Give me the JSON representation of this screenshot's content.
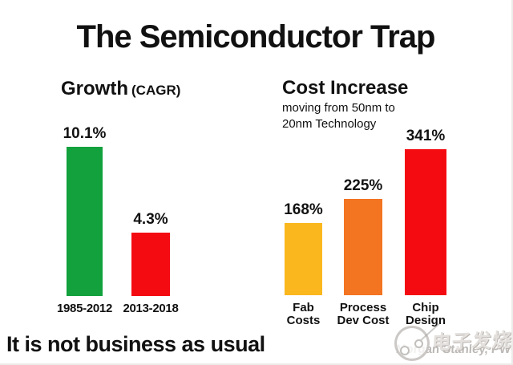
{
  "title": "The Semiconductor Trap",
  "chart_data": [
    {
      "type": "bar",
      "title": "Growth",
      "title_note": "(CAGR)",
      "categories": [
        "1985-2012",
        "2013-2018"
      ],
      "categories_lines": [
        [
          "1985-2012"
        ],
        [
          "2013-2018"
        ]
      ],
      "values": [
        10.1,
        4.3
      ],
      "value_labels": [
        "10.1%",
        "4.3%"
      ],
      "bar_colors": [
        "#12a13d",
        "#f40b12"
      ],
      "xlabel": "",
      "ylabel": "",
      "ylim": [
        0,
        10.1
      ],
      "grid": false,
      "legend": "none"
    },
    {
      "type": "bar",
      "title": "Cost Increase",
      "subtitle_lines": [
        "moving from 50nm to",
        "20nm Technology"
      ],
      "categories": [
        "Fab Costs",
        "Process Dev Cost",
        "Chip Design"
      ],
      "categories_lines": [
        [
          "Fab",
          "Costs"
        ],
        [
          "Process",
          "Dev Cost"
        ],
        [
          "Chip",
          "Design"
        ]
      ],
      "values": [
        168,
        225,
        341
      ],
      "value_labels": [
        "168%",
        "225%",
        "341%"
      ],
      "bar_colors": [
        "#fab71e",
        "#f37421",
        "#f40b12"
      ],
      "xlabel": "",
      "ylabel": "",
      "ylim": [
        0,
        341
      ],
      "grid": false,
      "legend": "none"
    }
  ],
  "footer": {
    "headline": "It is not business as usual",
    "source": "Morgan Stanley, PWC"
  },
  "watermark": {
    "text": "电子发烧友"
  },
  "colors": {
    "green": "#12a13d",
    "red": "#f40b12",
    "yellow": "#fab71e",
    "orange": "#f37421",
    "text": "#111111",
    "source_gray": "#bdb9b6"
  }
}
